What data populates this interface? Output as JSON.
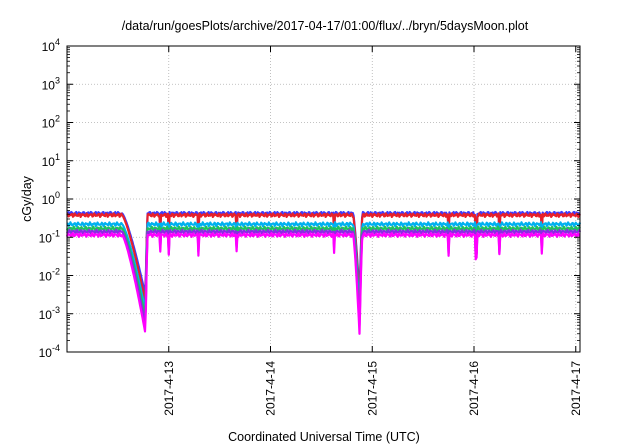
{
  "chart_data": {
    "type": "line",
    "title": "/data/run/goesPlots/archive/2017-04-17/01:00/flux/../bryn/5daysMoon.plot",
    "xlabel": "Coordinated Universal Time (UTC)",
    "ylabel": "cGy/day",
    "y_scale": "log",
    "ylim": [
      0.0001,
      10000
    ],
    "y_ticks": [
      {
        "base": "10",
        "exp": "-4"
      },
      {
        "base": "10",
        "exp": "-3"
      },
      {
        "base": "10",
        "exp": "-2"
      },
      {
        "base": "10",
        "exp": "-1"
      },
      {
        "base": "10",
        "exp": "0"
      },
      {
        "base": "10",
        "exp": "1"
      },
      {
        "base": "10",
        "exp": "2"
      },
      {
        "base": "10",
        "exp": "3"
      },
      {
        "base": "10",
        "exp": "4"
      }
    ],
    "xlim": [
      "2017-04-12 00:00",
      "2017-04-17 01:00"
    ],
    "x_ticks": [
      "2017-4-13",
      "2017-4-14",
      "2017-4-15",
      "2017-4-16",
      "2017-4-17"
    ],
    "grid": true,
    "dips": [
      {
        "time": "2017-04-12 16:00",
        "factor": 0.5
      },
      {
        "time": "2017-04-12 22:00",
        "factor": 0.4
      },
      {
        "time": "2017-04-13 00:00",
        "factor": 0.3
      },
      {
        "time": "2017-04-13 07:00",
        "factor": 0.3
      },
      {
        "time": "2017-04-13 16:00",
        "factor": 0.35
      },
      {
        "time": "2017-04-14 15:00",
        "factor": 0.35
      },
      {
        "time": "2017-04-14 20:00",
        "factor": 0.3
      },
      {
        "time": "2017-04-15 18:00",
        "factor": 0.3
      },
      {
        "time": "2017-04-16 00:30",
        "factor": 0.25
      },
      {
        "time": "2017-04-16 06:00",
        "factor": 0.3
      },
      {
        "time": "2017-04-16 16:00",
        "factor": 0.35
      }
    ],
    "series": [
      {
        "color": "#3b3bff",
        "level": 0.42,
        "deep_min": 0.003
      },
      {
        "color": "#e8202a",
        "level": 0.38,
        "deep_min": 0.002
      },
      {
        "color": "#00b0f0",
        "level": 0.22,
        "deep_min": 0.0012
      },
      {
        "color": "#20c060",
        "level": 0.17,
        "deep_min": 0.0008
      },
      {
        "color": "#8a2be2",
        "level": 0.14,
        "deep_min": 0.0005
      },
      {
        "color": "#ff00ff",
        "level": 0.115,
        "deep_min": 0.0003
      }
    ],
    "deep_dips": [
      {
        "start": "2017-04-12 13:00",
        "min_time": "2017-04-12 18:30",
        "end": "2017-04-12 19:00"
      },
      {
        "start": "2017-04-14 19:30",
        "min_time": "2017-04-14 21:00",
        "end": "2017-04-14 21:40"
      }
    ]
  }
}
